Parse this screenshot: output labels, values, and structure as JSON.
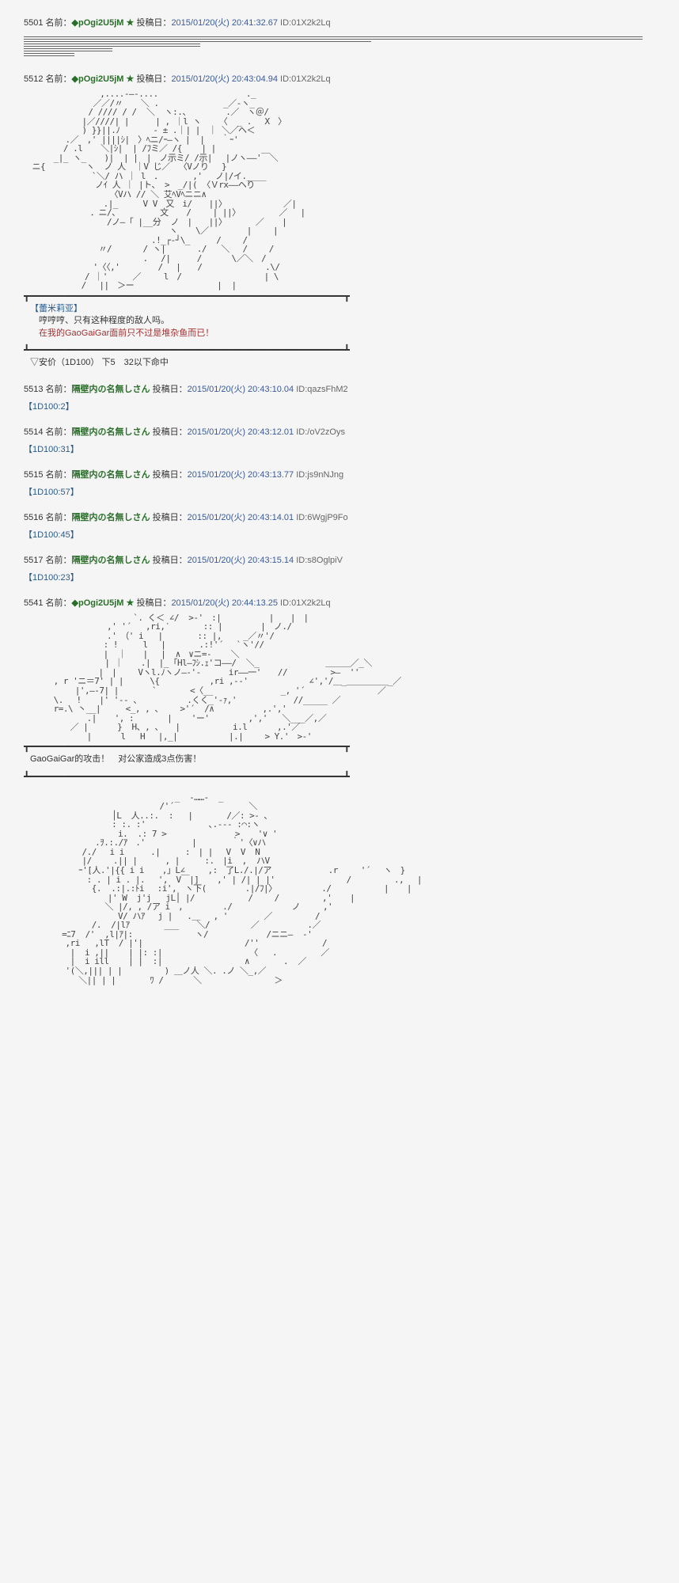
{
  "posts": [
    {
      "num": "5501",
      "name": "◆pOgi2U5jM ★",
      "date": "2015/01/20(火) 20:41:32.67",
      "id": "01X2k2Lq",
      "is_trip": true
    },
    {
      "num": "5512",
      "name": "◆pOgi2U5jM ★",
      "date": "2015/01/20(火) 20:43:04.94",
      "id": "01X2k2Lq",
      "is_trip": true,
      "chara": "【蕾米莉亚】",
      "line1": "哼哼哼、只有这种程度的敌人吗。",
      "line2": "在我的GaoGaiGar面前只不过是堆杂鱼而已！",
      "anchor": "▽安价（1D100） 下5　32以下命中"
    },
    {
      "num": "5513",
      "name": "隔壁内の名無しさん",
      "date": "2015/01/20(火) 20:43:10.04",
      "id": "qazsFhM2",
      "dice": "【1D100:2】"
    },
    {
      "num": "5514",
      "name": "隔壁内の名無しさん",
      "date": "2015/01/20(火) 20:43:12.01",
      "id": "/oV2zOys",
      "dice": "【1D100:31】"
    },
    {
      "num": "5515",
      "name": "隔壁内の名無しさん",
      "date": "2015/01/20(火) 20:43:13.77",
      "id": "js9nNJng",
      "dice": "【1D100:57】"
    },
    {
      "num": "5516",
      "name": "隔壁内の名無しさん",
      "date": "2015/01/20(火) 20:43:14.01",
      "id": "6WgjP9Fo",
      "dice": "【1D100:45】"
    },
    {
      "num": "5517",
      "name": "隔壁内の名無しさん",
      "date": "2015/01/20(火) 20:43:15.14",
      "id": "s8OglpiV",
      "dice": "【1D100:23】"
    },
    {
      "num": "5541",
      "name": "◆pOgi2U5jM ★",
      "date": "2015/01/20(火) 20:44:13.25",
      "id": "01X2k2Lq",
      "is_trip": true,
      "result": "GaoGaiGar的攻击！　对公家造成3点伤害！"
    }
  ],
  "labels": {
    "name_label": "名前：",
    "date_label": "投稿日：",
    "id_label": "ID:"
  },
  "aa": {
    "remilia": "　　　　　　　 　 ,....-―-....　　　　　　　　　　 ._\n　　　 　 　 　 ／／/〃  　＼ .　　　　 　 　 _／-ヽ_\n　　　 　 　 　/ //// / /  ＼  ヽ:.、　 　 　 .／　ヽ＠/\n　　　　　　　|／////| |  　　| , ｜l ヽ 　 〈  _ . 　X　〉\n　　　　　　　) }}||.ﾉ　　　　- ± .｜| |　｜ ＼／ヘ＜\n　　　　　.／　,' ||||ｼ|　〉ﾍニ/ｰ―ヽ |  |　　｀ｰ'\n　 　 　 / .l 　 ＼|ｼ|  | /ﾌミ／ /{    | |\n　　　 _|_ ヽ_ 　 )|  | |　|　ノ示ミ/ /示|　 |ノヽ――'￣＼\n　ニ{    　 　ヽ  ノ 人  ｜V じ／ 　〈Vノり 　}\n　　　　 　　　 `＼/ ハ ｜ l　．　 　　 ,'　 ノ|/イ.____\n　　　　　　　　 ノｲ 人 ｜ |ト、 >　_/|( 〈Ｖrx――ヘり\n　　　　　　　　    〈Vハ // ＼ 艾ﾍVﾍニニ∧\n　　　　　　　　 　.|_　　　V V　又　i/　　||〉　　 　 　 　 ／|\n　　　　　　　　．ニ/、　　 　   文　  / 　　| ||〉　　　 　 ／ 　|\n　　　　　　　　　　/ノ―「 |__分  ノ　|　　||〉　　　　／ 　 |\n　　　　　　　　　 　 　 　 　 　 ヽ 　 \\／　　　　 |　　 |\n　　　　　　　　　　 　　　   .!_┌‐┘\\_ 　 　/　　 /\n　　　　　　　　　〃/ 　 　 / ヽ|　 　  ./   ＼ 　/　 　/\n　　　　　　　　　 　 　 　 .　 /|　 　 /　　 　\\／＼　/\n　 　　　 　 　 '〈〈,'　　　　 / 　|　　/　　　　　　 　.\\/\n　　 　 　 　 / ｜'　　　／ 　  l　/　　　　 　 　 　  | \\\n　　 　　    /　 ||　＞ー　　　　　　　　　　|  |",
    "attack": "　　　　　　　　　　　　  `. く＜ ∠/  >‐'　:|　 　　 　 |　　|　|\n　　　　　　　　　　,' '´   ,ri,′　　　　:: |　　　 　|　ノ./\n　　　　　　　　　　.'　（' i   |  　　　:: |,　 　_／〃'/\n　　　　　　　　　 : !　　　l 　|　　　　.:!'´　 `ヽ'//\n　　　　　　　　　 |  ｜　　| 　|  ∧　∨ニ=‐    ＼\n　　　　　 　 　 　| ｜ 　 .|　|_ ｢Hl―ﾌｼ.ｪ'コ――/  ＼_ 　           ＿＿＿／_＼\n　　　　　　　　　|　|　 　Vヽl.ﾉヽノ―‐'‐　    ir――一'　　//　　 　　 >―  ''\n　　　 , r 'ニ＝7' | |　 　 \\{　　　　　　,ri ,-‐'   　　　　　 ∠','/＿_＿＿＿＿＿_／\n　　　　 　 |',―‐7| |　　　　`　　　　<〈__              _, '´               ／\n　　　 \\. 　! 　 |' '‐- 、　　　　　　.くく_'‐ｧ,'　          //_____ ／\n　　　 r=.\\ 丶__|　　　<_, , 、　 　>'´  /∧          ,.','\n　　　　　　 　.| 　 ', :　　　　|    'ー'        ,','   ＼___／,／\n　　　　　 ／ |      }  H、, 、　　|  　　　 　 i.l　　　 ,.'／\n　　　　　　　 |      l   H　 |,_|  　　　　　|.|　　 > Y.'　>‐'",
    "remilia2": "　　　　　　　　　　　　　　　　　  _  ‐……‐  _\n　　　　　　　　　　　　 　 　  /'´         　　   ＼\n　　　　　　　　　　 │L  人..:.  :   |       /／: >- ､\n　　　　　　　　 　　: :. :'　　　　　　 　､.-‐- :⌒:ヽ\n　　　　　　　   　　 i.  .: 7 >  　 　      　> 　 '∨ '\n　　　　　　　 　.ｦ.:./ｱ　.'　　　　　 |　　　  ｀'〈∨ハ\n　　　　　　　/./　 i i 　 　.|　　　:　| |　 V  V  N\n　　　　　　　|/　　 .|| |    　, |　　　:.　|i  ,  ハV\n　　　　　　 ｰ'[人.'|{{ i i  　,」L∠ 　  ,:　了L./.|/ア         　 .r　   '´ 　ヽ　}\n　　　　　　　 : . | i . |.　 ',　V￣|] 　 ,' | /| | |'           　  /　　　 　 .,　 |\n　　　　　　 　 {.  .:|.:ﾄi 　:i',　ヽ下(        .|/ﾌ|〉　 　 　   ./ 　 　 　 　|　  |\n　　　　　　       |' W  j'j   jL│ |/           /　　 /　 　　　 ,' 　 |\n　　 　　　　　 　 ＼ |/, , /ア i　, 　 　 　./　　　　　 　 ノ 　  ,'\n　　　　　　 　 　　  V/ ハｱ　 j |   .＿　 , ' 　 　  ／　 　　 　/\n　　　　　　 　 /.  /|lｱ　　 　 ___ 　 ＼/ 　 　   ／          .／\n　　　　 =ﾆ7  /'  ,l|ｱ|:    　　　 　 ヽ/            /ニニ―  -'\n　　　　　,ri   ,lT  / |'|                     /''             /\n　　　　　 |  i ,||    | |: :|                  〈   .         ／\n　　　　　 |  i ill    | |  :|                 ∧       .  ／\n　　　　　'(＼,||| | |       　) ＿ノ人 ＼. .ノ ＼_,／\n　　　　　　 ＼|| | |       ﾜ /　　　 ＼               ＞"
  },
  "colors": {
    "trip": "#2a6e2a",
    "date": "#3a5a9a",
    "chara": "#2a5a8a",
    "highlight": "#a03030",
    "text": "#333333",
    "bg": "#f5f5f5"
  }
}
